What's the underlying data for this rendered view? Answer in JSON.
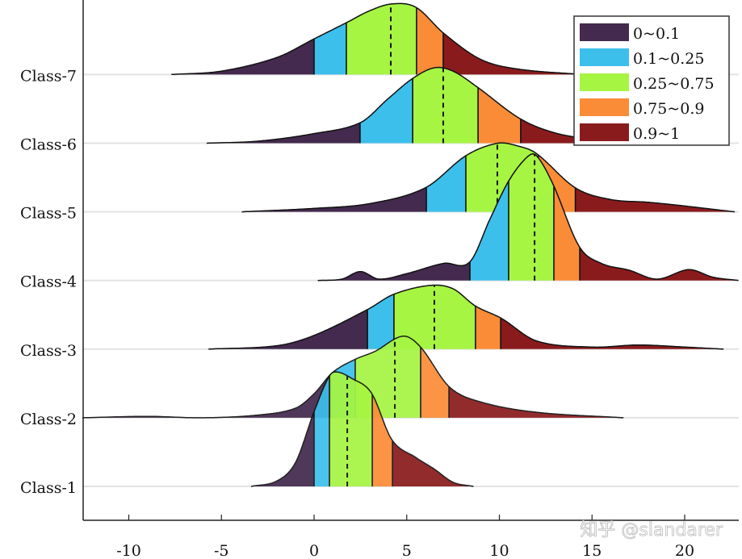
{
  "chart_data": {
    "type": "ridgeline",
    "xlim": [
      -12.5,
      22.9
    ],
    "xticks": [
      -10,
      -5,
      0,
      5,
      10,
      15,
      20
    ],
    "grid": "horizontal baselines",
    "legend_placement": "top-right",
    "legend": [
      {
        "label": "0~0.1",
        "color": "#432a4e"
      },
      {
        "label": "0.1~0.25",
        "color": "#3dbfec"
      },
      {
        "label": "0.25~0.75",
        "color": "#a6f543"
      },
      {
        "label": "0.75~0.9",
        "color": "#fb8c37"
      },
      {
        "label": "0.9~1",
        "color": "#8a1b1d"
      }
    ],
    "classes": [
      {
        "name": "Class-1",
        "quantiles": [
          0,
          0.83,
          3.14,
          4.23
        ],
        "median": 1.79,
        "density": [
          [
            -3.4,
            0
          ],
          [
            -2,
            0.08
          ],
          [
            -1,
            0.35
          ],
          [
            0,
            1.09
          ],
          [
            0.8,
            1.6
          ],
          [
            1.2,
            1.67
          ],
          [
            2,
            1.58
          ],
          [
            3.1,
            1.36
          ],
          [
            4.2,
            0.68
          ],
          [
            5.5,
            0.42
          ],
          [
            6.5,
            0.25
          ],
          [
            7.5,
            0.06
          ],
          [
            8.6,
            0
          ]
        ]
      },
      {
        "name": "Class-2",
        "quantiles": [
          0.9,
          2.22,
          5.75,
          7.28
        ],
        "median": 4.36,
        "density": [
          [
            -12.5,
            0
          ],
          [
            -9,
            0.02
          ],
          [
            -6,
            0
          ],
          [
            -3,
            0.04
          ],
          [
            -1,
            0.14
          ],
          [
            0,
            0.35
          ],
          [
            1,
            0.66
          ],
          [
            2.2,
            0.85
          ],
          [
            3.3,
            0.97
          ],
          [
            4.8,
            1.19
          ],
          [
            5.75,
            1.03
          ],
          [
            7.3,
            0.45
          ],
          [
            9,
            0.23
          ],
          [
            12,
            0.08
          ],
          [
            16.7,
            0
          ]
        ]
      },
      {
        "name": "Class-3",
        "quantiles": [
          2.88,
          4.31,
          8.71,
          10.07
        ],
        "median": 6.49,
        "density": [
          [
            -5.7,
            0
          ],
          [
            -2,
            0.05
          ],
          [
            0,
            0.2
          ],
          [
            2.9,
            0.58
          ],
          [
            4.3,
            0.8
          ],
          [
            6.3,
            0.93
          ],
          [
            7.5,
            0.88
          ],
          [
            8.7,
            0.63
          ],
          [
            10.1,
            0.45
          ],
          [
            12,
            0.12
          ],
          [
            15,
            0.03
          ],
          [
            17.5,
            0.06
          ],
          [
            20,
            0.03
          ],
          [
            22.1,
            0
          ]
        ]
      },
      {
        "name": "Class-4",
        "quantiles": [
          8.41,
          10.5,
          12.94,
          14.34
        ],
        "median": 11.9,
        "density": [
          [
            0.2,
            0
          ],
          [
            1.5,
            0.02
          ],
          [
            2.5,
            0.13
          ],
          [
            3.5,
            0.02
          ],
          [
            5,
            0.1
          ],
          [
            7,
            0.25
          ],
          [
            8.4,
            0.27
          ],
          [
            9.5,
            0.9
          ],
          [
            10.5,
            1.45
          ],
          [
            11.5,
            1.8
          ],
          [
            12,
            1.82
          ],
          [
            12.9,
            1.4
          ],
          [
            14.3,
            0.5
          ],
          [
            15.5,
            0.25
          ],
          [
            17,
            0.15
          ],
          [
            18.5,
            0.02
          ],
          [
            20,
            0.15
          ],
          [
            20.5,
            0.15
          ],
          [
            21.5,
            0.05
          ],
          [
            22.9,
            0
          ]
        ]
      },
      {
        "name": "Class-5",
        "quantiles": [
          6.06,
          8.19,
          12.1,
          14.1
        ],
        "median": 9.89,
        "density": [
          [
            -3.9,
            0
          ],
          [
            0,
            0.05
          ],
          [
            3,
            0.12
          ],
          [
            6,
            0.35
          ],
          [
            8.2,
            0.82
          ],
          [
            9.9,
            1.0
          ],
          [
            11,
            0.96
          ],
          [
            12,
            0.85
          ],
          [
            14.1,
            0.35
          ],
          [
            16,
            0.18
          ],
          [
            18,
            0.14
          ],
          [
            19.5,
            0.1
          ],
          [
            22.7,
            0
          ]
        ]
      },
      {
        "name": "Class-6",
        "quantiles": [
          2.48,
          5.32,
          8.85,
          11.15
        ],
        "median": 6.97,
        "density": [
          [
            -5.8,
            0
          ],
          [
            -3,
            0.03
          ],
          [
            0,
            0.14
          ],
          [
            2.5,
            0.3
          ],
          [
            4,
            0.65
          ],
          [
            5.3,
            0.94
          ],
          [
            6.5,
            1.1
          ],
          [
            7.5,
            1.05
          ],
          [
            8.8,
            0.82
          ],
          [
            11.1,
            0.36
          ],
          [
            13,
            0.15
          ],
          [
            15,
            0.06
          ],
          [
            18,
            0
          ]
        ]
      },
      {
        "name": "Class-7",
        "quantiles": [
          0,
          1.74,
          5.53,
          6.97
        ],
        "median": 4.14,
        "density": [
          [
            -7.7,
            0
          ],
          [
            -5,
            0.05
          ],
          [
            -2,
            0.25
          ],
          [
            0,
            0.52
          ],
          [
            1.7,
            0.75
          ],
          [
            3,
            0.93
          ],
          [
            4.2,
            1.03
          ],
          [
            5.5,
            0.98
          ],
          [
            7,
            0.6
          ],
          [
            9,
            0.22
          ],
          [
            11,
            0.08
          ],
          [
            14.5,
            0
          ]
        ]
      }
    ]
  },
  "watermark": "知乎 @slandarer"
}
